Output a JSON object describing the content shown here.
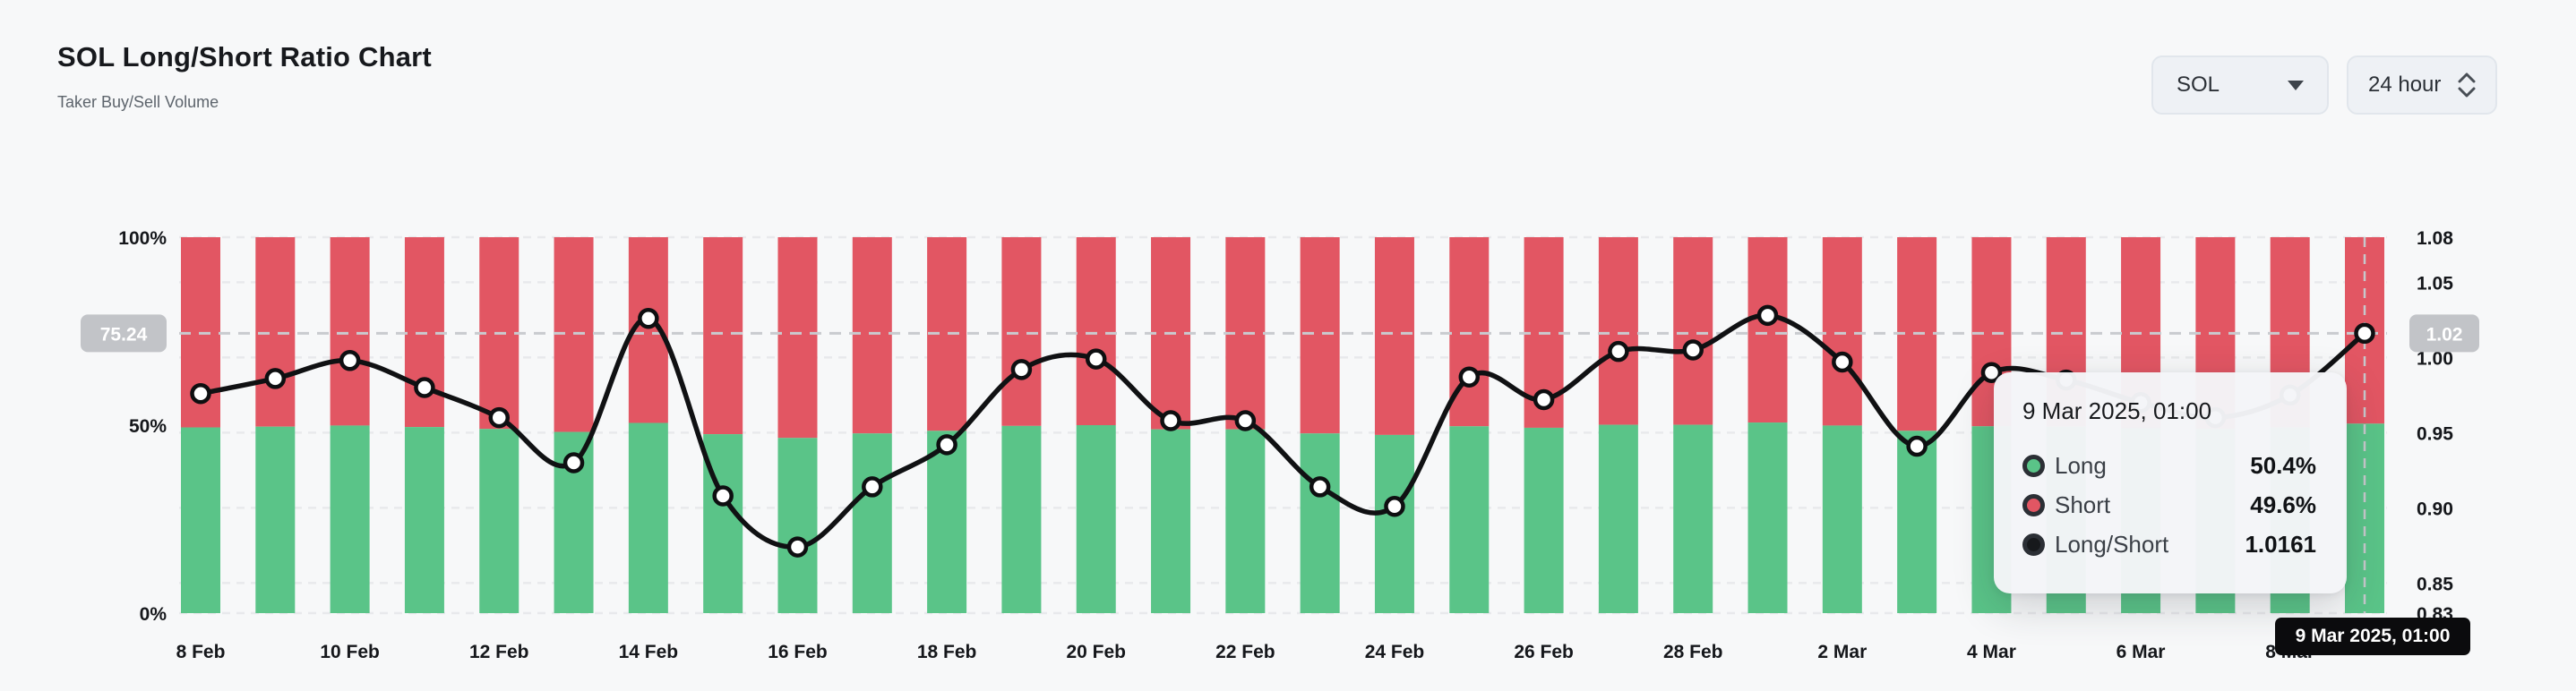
{
  "header": {
    "title": "SOL Long/Short Ratio Chart",
    "subtitle": "Taker Buy/Sell Volume"
  },
  "controls": {
    "symbol_dropdown": {
      "value": "SOL"
    },
    "interval_dropdown": {
      "value": "24 hour"
    }
  },
  "chart_data": {
    "type": "bar",
    "subtype": "stacked-percent-bars-with-ratio-line",
    "title": "SOL Long/Short Ratio Chart",
    "categories": [
      "8 Feb",
      "9 Feb",
      "10 Feb",
      "11 Feb",
      "12 Feb",
      "13 Feb",
      "14 Feb",
      "15 Feb",
      "16 Feb",
      "17 Feb",
      "18 Feb",
      "19 Feb",
      "20 Feb",
      "21 Feb",
      "22 Feb",
      "23 Feb",
      "24 Feb",
      "25 Feb",
      "26 Feb",
      "27 Feb",
      "28 Feb",
      "1 Mar",
      "2 Mar",
      "3 Mar",
      "4 Mar",
      "5 Mar",
      "6 Mar",
      "7 Mar",
      "8 Mar",
      "9 Mar"
    ],
    "series": [
      {
        "name": "Long",
        "type": "bar",
        "unit": "%",
        "color": "#5ac488",
        "values": [
          49.4,
          49.6,
          49.9,
          49.5,
          49.0,
          48.2,
          50.6,
          47.6,
          46.6,
          47.8,
          48.5,
          49.8,
          50.0,
          48.9,
          48.9,
          47.8,
          47.4,
          49.7,
          49.3,
          50.1,
          50.1,
          50.7,
          49.9,
          48.5,
          49.7,
          49.6,
          49.2,
          49.0,
          49.4,
          50.4
        ]
      },
      {
        "name": "Short",
        "type": "bar",
        "unit": "%",
        "color": "#e25663",
        "values": [
          50.6,
          50.4,
          50.1,
          50.5,
          51.0,
          51.8,
          49.4,
          52.4,
          53.4,
          52.2,
          51.5,
          50.2,
          50.0,
          51.1,
          51.1,
          52.2,
          52.6,
          50.3,
          50.7,
          49.9,
          49.9,
          49.3,
          50.1,
          51.5,
          50.3,
          50.4,
          50.8,
          51.0,
          50.6,
          49.6
        ]
      },
      {
        "name": "Long/Short",
        "type": "line",
        "color": "#101113",
        "values": [
          0.976,
          0.986,
          0.998,
          0.98,
          0.96,
          0.93,
          1.026,
          0.908,
          0.874,
          0.914,
          0.942,
          0.992,
          0.999,
          0.958,
          0.958,
          0.914,
          0.901,
          0.987,
          0.972,
          1.004,
          1.005,
          1.028,
          0.997,
          0.941,
          0.99,
          0.985,
          0.97,
          0.96,
          0.975,
          1.0161
        ]
      }
    ],
    "left_axis": {
      "unit": "%",
      "ticks": [
        "100%",
        "50%",
        "0%"
      ],
      "tick_values": [
        100,
        50,
        0
      ],
      "range": [
        0,
        100
      ]
    },
    "right_axis": {
      "ticks": [
        "1.08",
        "1.05",
        "1.00",
        "0.95",
        "0.90",
        "0.85",
        "0.83"
      ],
      "tick_values": [
        1.08,
        1.05,
        1.0,
        0.95,
        0.9,
        0.85,
        0.83
      ],
      "range": [
        0.83,
        1.08
      ]
    },
    "x_ticks": [
      {
        "index": 0,
        "label": "8 Feb"
      },
      {
        "index": 2,
        "label": "10 Feb"
      },
      {
        "index": 4,
        "label": "12 Feb"
      },
      {
        "index": 6,
        "label": "14 Feb"
      },
      {
        "index": 8,
        "label": "16 Feb"
      },
      {
        "index": 10,
        "label": "18 Feb"
      },
      {
        "index": 12,
        "label": "20 Feb"
      },
      {
        "index": 14,
        "label": "22 Feb"
      },
      {
        "index": 16,
        "label": "24 Feb"
      },
      {
        "index": 18,
        "label": "26 Feb"
      },
      {
        "index": 20,
        "label": "28 Feb"
      },
      {
        "index": 22,
        "label": "2 Mar"
      },
      {
        "index": 24,
        "label": "4 Mar"
      },
      {
        "index": 26,
        "label": "6 Mar"
      },
      {
        "index": 28,
        "label": "8 Mar"
      }
    ],
    "grid": true,
    "legend_position": "none",
    "highlight": {
      "crosshair_category": "9 Mar",
      "crosshair_index": 29,
      "ratio_value": 1.0161,
      "left_axis_badge": "75.24",
      "right_axis_badge": "1.02"
    }
  },
  "tooltip": {
    "title": "9 Mar 2025, 01:00",
    "rows": [
      {
        "label": "Long",
        "value": "50.4%",
        "marker_color": "#5ac488"
      },
      {
        "label": "Short",
        "value": "49.6%",
        "marker_color": "#e25663"
      },
      {
        "label": "Long/Short",
        "value": "1.0161",
        "marker_color": "#17191c"
      }
    ]
  },
  "x_axis_tooltip": {
    "label": "9 Mar 2025, 01:00"
  },
  "colors": {
    "background": "#f7f8f9",
    "long": "#5ac488",
    "short": "#e25663",
    "line": "#101113",
    "grid": "#e8e9ec",
    "axis_text": "#15171b",
    "badge_bg": "#c2c4c8",
    "badge_text": "#ffffff",
    "dashed_highlight": "#c9cbcf",
    "tooltip_bg": "#f4f5f8",
    "x_tooltip_bg": "#0b0b0d"
  }
}
